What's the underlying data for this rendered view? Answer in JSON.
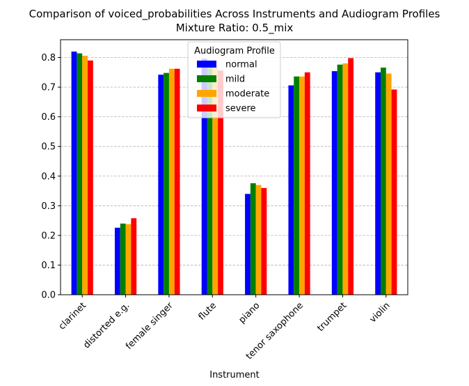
{
  "chart_data": {
    "type": "bar",
    "title": "Comparison of voiced_probabilities Across Instruments and Audiogram Profiles",
    "subtitle": "Mixture Ratio: 0.5_mix",
    "xlabel": "Instrument",
    "ylabel": "",
    "ylim": [
      0,
      0.86
    ],
    "yticks": [
      "0.0",
      "0.1",
      "0.2",
      "0.3",
      "0.4",
      "0.5",
      "0.6",
      "0.7",
      "0.8"
    ],
    "grid": "y-dashed",
    "legend_title": "Audiogram Profile",
    "legend_position": "top-center",
    "categories": [
      "clarinet",
      "distorted e.g.",
      "female singer",
      "flute",
      "piano",
      "tenor saxophone",
      "trumpet",
      "violin"
    ],
    "series": [
      {
        "name": "normal",
        "color": "#0000ff",
        "values": [
          0.82,
          0.226,
          0.742,
          0.796,
          0.34,
          0.706,
          0.754,
          0.75
        ]
      },
      {
        "name": "mild",
        "color": "#008000",
        "values": [
          0.814,
          0.24,
          0.748,
          0.79,
          0.376,
          0.736,
          0.776,
          0.766
        ]
      },
      {
        "name": "moderate",
        "color": "#ffa500",
        "values": [
          0.806,
          0.238,
          0.762,
          0.77,
          0.37,
          0.736,
          0.78,
          0.746
        ]
      },
      {
        "name": "severe",
        "color": "#ff0000",
        "values": [
          0.79,
          0.258,
          0.762,
          0.756,
          0.36,
          0.75,
          0.798,
          0.692
        ]
      }
    ]
  }
}
